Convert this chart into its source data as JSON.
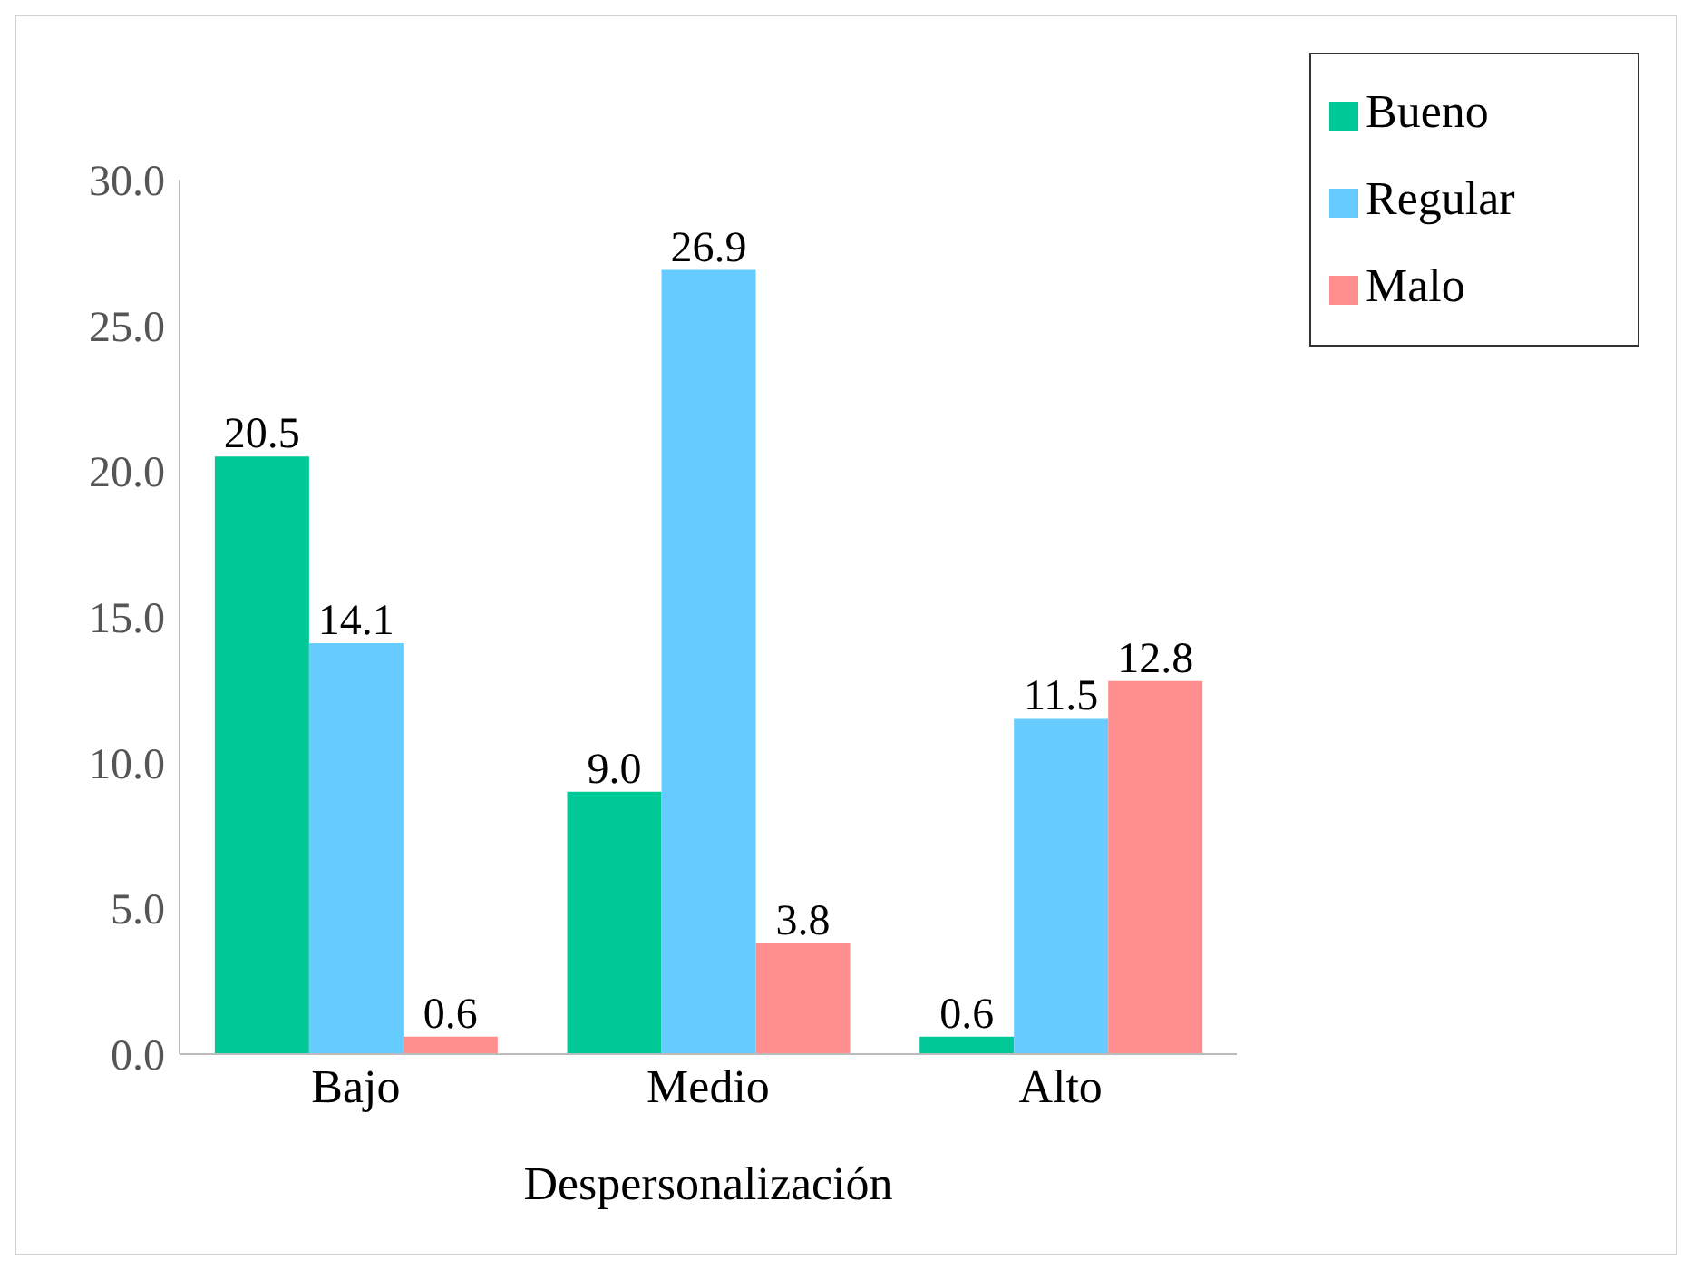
{
  "chart_data": {
    "type": "bar",
    "xlabel": "Despersonalización",
    "categories": [
      "Bajo",
      "Medio",
      "Alto"
    ],
    "series": [
      {
        "name": "Bueno",
        "color": "#00c896",
        "values": [
          20.5,
          9.0,
          0.6
        ],
        "value_labels": [
          "20.5",
          "9.0",
          "0.6"
        ]
      },
      {
        "name": "Regular",
        "color": "#66ccff",
        "values": [
          14.1,
          26.9,
          11.5
        ],
        "value_labels": [
          "14.1",
          "26.9",
          "11.5"
        ]
      },
      {
        "name": "Malo",
        "color": "#ff8f8f",
        "values": [
          0.6,
          3.8,
          12.8
        ],
        "value_labels": [
          "0.6",
          "3.8",
          "12.8"
        ]
      }
    ],
    "ylim": [
      0,
      30
    ],
    "yticks": [
      {
        "value": 0,
        "label": "0.0"
      },
      {
        "value": 5,
        "label": "5.0"
      },
      {
        "value": 10,
        "label": "10.0"
      },
      {
        "value": 15,
        "label": "15.0"
      },
      {
        "value": 20,
        "label": "20.0"
      },
      {
        "value": 25,
        "label": "25.0"
      },
      {
        "value": 30,
        "label": "30.0"
      }
    ],
    "grid": false,
    "legend": "top right"
  }
}
